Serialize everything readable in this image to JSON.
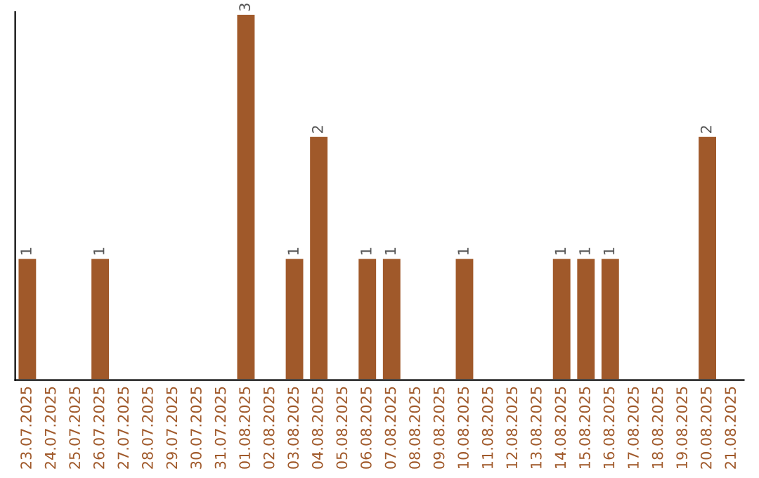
{
  "chart_data": {
    "type": "bar",
    "categories": [
      "23.07.2025",
      "24.07.2025",
      "25.07.2025",
      "26.07.2025",
      "27.07.2025",
      "28.07.2025",
      "29.07.2025",
      "30.07.2025",
      "31.07.2025",
      "01.08.2025",
      "02.08.2025",
      "03.08.2025",
      "04.08.2025",
      "05.08.2025",
      "06.08.2025",
      "07.08.2025",
      "08.08.2025",
      "09.08.2025",
      "10.08.2025",
      "11.08.2025",
      "12.08.2025",
      "13.08.2025",
      "14.08.2025",
      "15.08.2025",
      "16.08.2025",
      "17.08.2025",
      "18.08.2025",
      "19.08.2025",
      "20.08.2025",
      "21.08.2025"
    ],
    "values": [
      1,
      0,
      0,
      1,
      0,
      0,
      0,
      0,
      0,
      3,
      0,
      1,
      2,
      0,
      1,
      1,
      0,
      0,
      1,
      0,
      0,
      0,
      1,
      1,
      1,
      0,
      0,
      0,
      2,
      0
    ],
    "value_labels": [
      "1",
      null,
      null,
      "1",
      null,
      null,
      null,
      null,
      null,
      "3",
      null,
      "1",
      "2",
      null,
      "1",
      "1",
      null,
      null,
      "1",
      null,
      null,
      null,
      "1",
      "1",
      "1",
      null,
      null,
      null,
      "2",
      null
    ],
    "color": "#a0592a",
    "grid": false,
    "legend": false
  }
}
